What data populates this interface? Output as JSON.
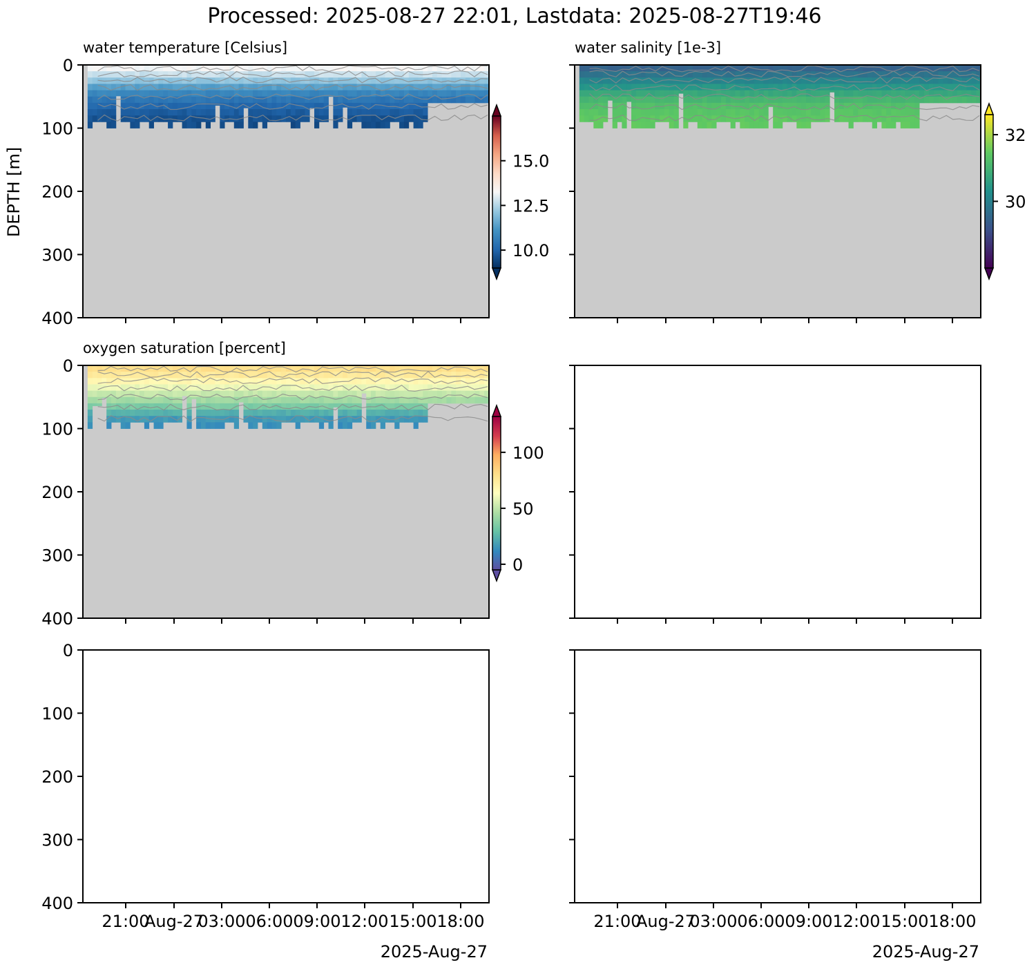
{
  "figure": {
    "suptitle": "Processed: 2025-08-27 22:01, Lastdata: 2025-08-27T19:46",
    "ylabel": "DEPTH [m]",
    "y_ticks": [
      0,
      100,
      200,
      300,
      400
    ],
    "x_ticks": [
      "21:00",
      "Aug-27",
      "03:00",
      "06:00",
      "09:00",
      "12:00",
      "15:00",
      "18:00"
    ],
    "x_offset_label": "2025-Aug-27",
    "fill_color": "#cbcbcb"
  },
  "chart_data": [
    {
      "type": "heatmap",
      "panel": "top-left",
      "title": "water temperature [Celsius]",
      "x_range": [
        "2025-08-26T18:20",
        "2025-08-27T19:46"
      ],
      "ylim": [
        400,
        0
      ],
      "colormap": "RdBu_r",
      "colorbar": {
        "min": 9.0,
        "max": 17.5,
        "ticks": [
          "10.0",
          "12.5",
          "15.0"
        ],
        "extend": "both"
      },
      "profile_max_depth_m": 100,
      "value_by_depth": [
        [
          0,
          13.5
        ],
        [
          20,
          12.5
        ],
        [
          40,
          11.0
        ],
        [
          60,
          10.2
        ],
        [
          80,
          9.7
        ],
        [
          100,
          9.5
        ]
      ]
    },
    {
      "type": "heatmap",
      "panel": "top-right",
      "title": "water salinity [1e-3]",
      "x_range": [
        "2025-08-26T18:20",
        "2025-08-27T19:46"
      ],
      "ylim": [
        400,
        0
      ],
      "colormap": "viridis",
      "colorbar": {
        "min": 28.0,
        "max": 32.6,
        "ticks": [
          "30",
          "32"
        ],
        "extend": "both"
      },
      "profile_max_depth_m": 100,
      "value_by_depth": [
        [
          0,
          29.3
        ],
        [
          20,
          29.9
        ],
        [
          40,
          30.6
        ],
        [
          60,
          31.2
        ],
        [
          80,
          31.4
        ],
        [
          100,
          31.5
        ]
      ]
    },
    {
      "type": "heatmap",
      "panel": "middle-left",
      "title": "oxygen saturation [percent]",
      "x_range": [
        "2025-08-26T18:20",
        "2025-08-27T19:46"
      ],
      "ylim": [
        400,
        0
      ],
      "colormap": "Spectral_r",
      "colorbar": {
        "min": -5,
        "max": 132,
        "ticks": [
          "0",
          "50",
          "100"
        ],
        "extend": "both"
      },
      "profile_max_depth_m": 100,
      "value_by_depth": [
        [
          0,
          82
        ],
        [
          20,
          72
        ],
        [
          40,
          55
        ],
        [
          60,
          40
        ],
        [
          80,
          18
        ],
        [
          100,
          12
        ]
      ]
    },
    {
      "type": "heatmap",
      "panel": "middle-right",
      "title": "",
      "empty": true
    },
    {
      "type": "heatmap",
      "panel": "bottom-left",
      "title": "",
      "empty": true
    },
    {
      "type": "heatmap",
      "panel": "bottom-right",
      "title": "",
      "empty": true
    }
  ]
}
